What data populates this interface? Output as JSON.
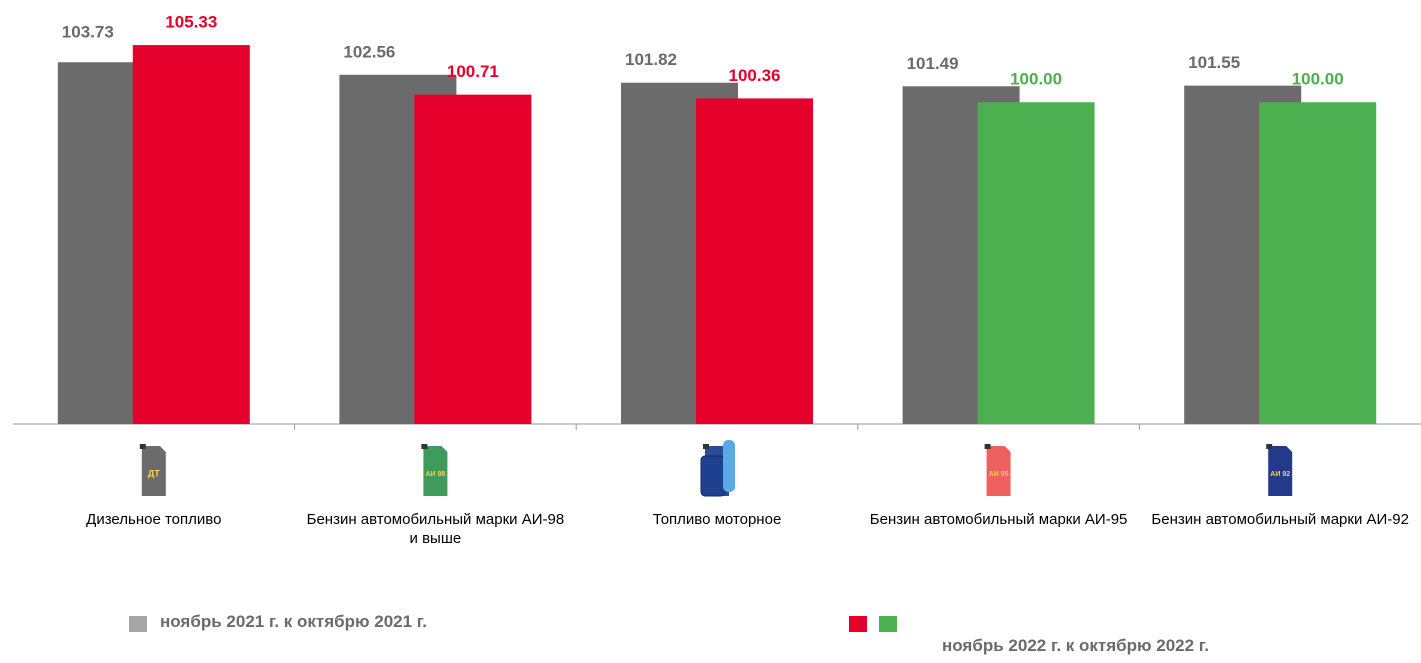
{
  "chart_data": {
    "type": "bar",
    "categories": [
      "Дизельное топливо",
      "Бензин автомобильный марки АИ-98 и выше",
      "Топливо моторное",
      "Бензин автомобильный марки АИ-95",
      "Бензин автомобильный марки АИ-92"
    ],
    "series": [
      {
        "name": "ноябрь 2021 г. к октябрю 2021 г.",
        "color": "#6b6b6b",
        "values": [
          103.73,
          102.56,
          101.82,
          101.49,
          101.55
        ]
      },
      {
        "name": "ноябрь 2022 г. к октябрю 2022 г.",
        "colors": [
          "#e4002b",
          "#e4002b",
          "#e4002b",
          "#4caf50",
          "#4caf50"
        ],
        "values": [
          105.33,
          100.71,
          100.36,
          100,
          100
        ],
        "value_labels": [
          "105.33",
          "100.71",
          "100.36",
          "100.00",
          "100.00"
        ]
      }
    ],
    "icons": [
      {
        "label": "ДТ",
        "color": "#6b6b6b"
      },
      {
        "label": "АИ 98",
        "color": "#3f9a5c"
      },
      {
        "color": "#2a4a9a"
      },
      {
        "label": "АИ 95",
        "color": "#ef6060"
      },
      {
        "label": "АИ 92",
        "color": "#23398a"
      }
    ],
    "ylim": [
      70,
      110
    ]
  }
}
